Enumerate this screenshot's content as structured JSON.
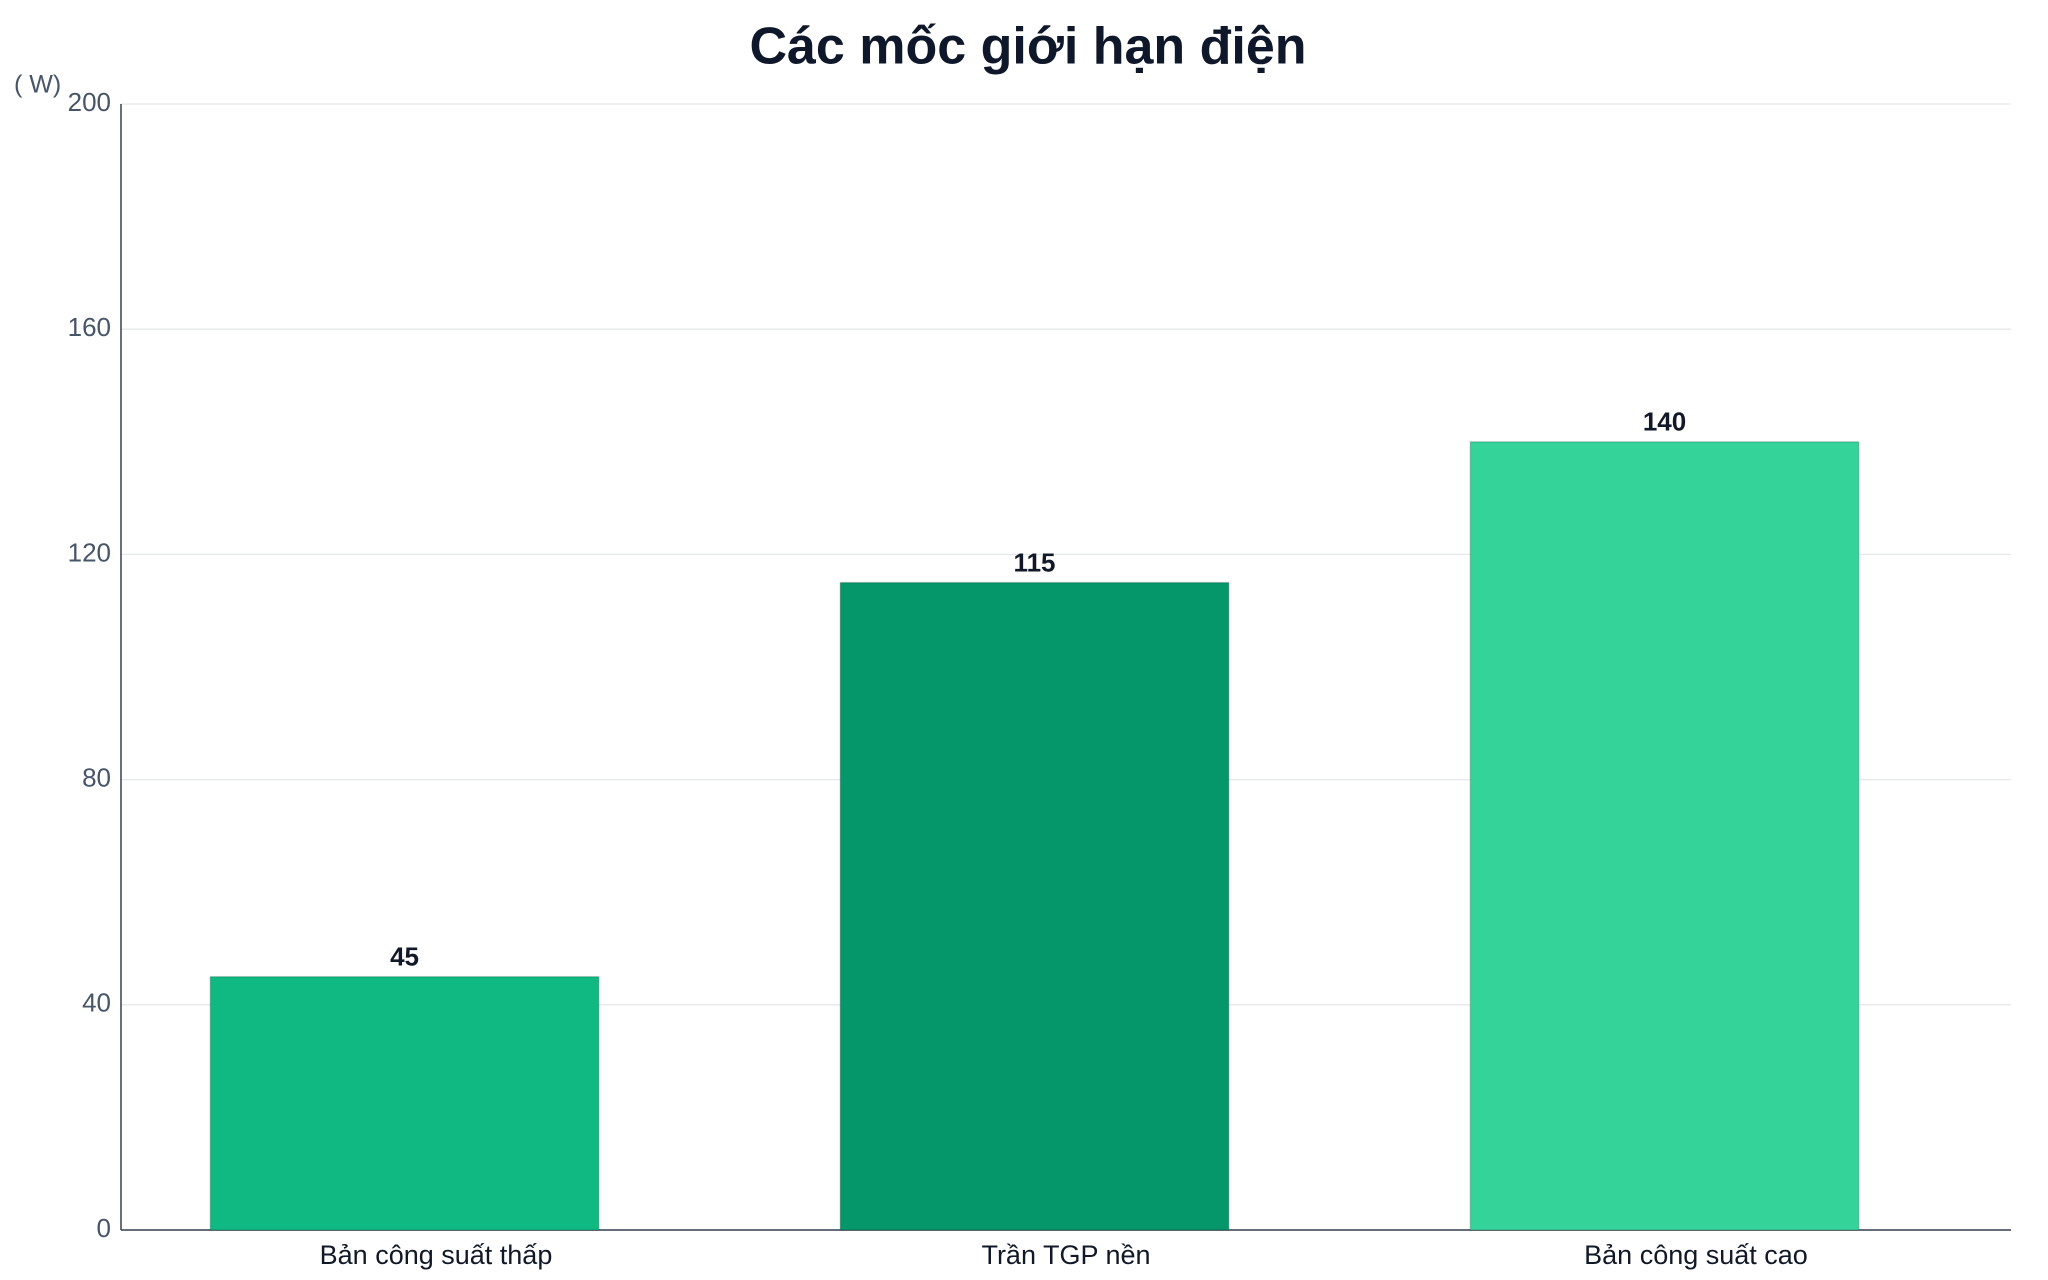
{
  "chart_data": {
    "type": "bar",
    "title": "Các mốc giới hạn điện",
    "y_label": "( W)",
    "categories": [
      "Bản công suất thấp",
      "Trần TGP nền",
      "Bản công suất cao"
    ],
    "values": [
      45,
      115,
      140
    ],
    "colors": [
      "#10b981",
      "#059669",
      "#34d399"
    ],
    "ylim": [
      0,
      200
    ],
    "yticks": [
      0,
      40,
      80,
      120,
      160,
      200
    ],
    "grid": true
  }
}
